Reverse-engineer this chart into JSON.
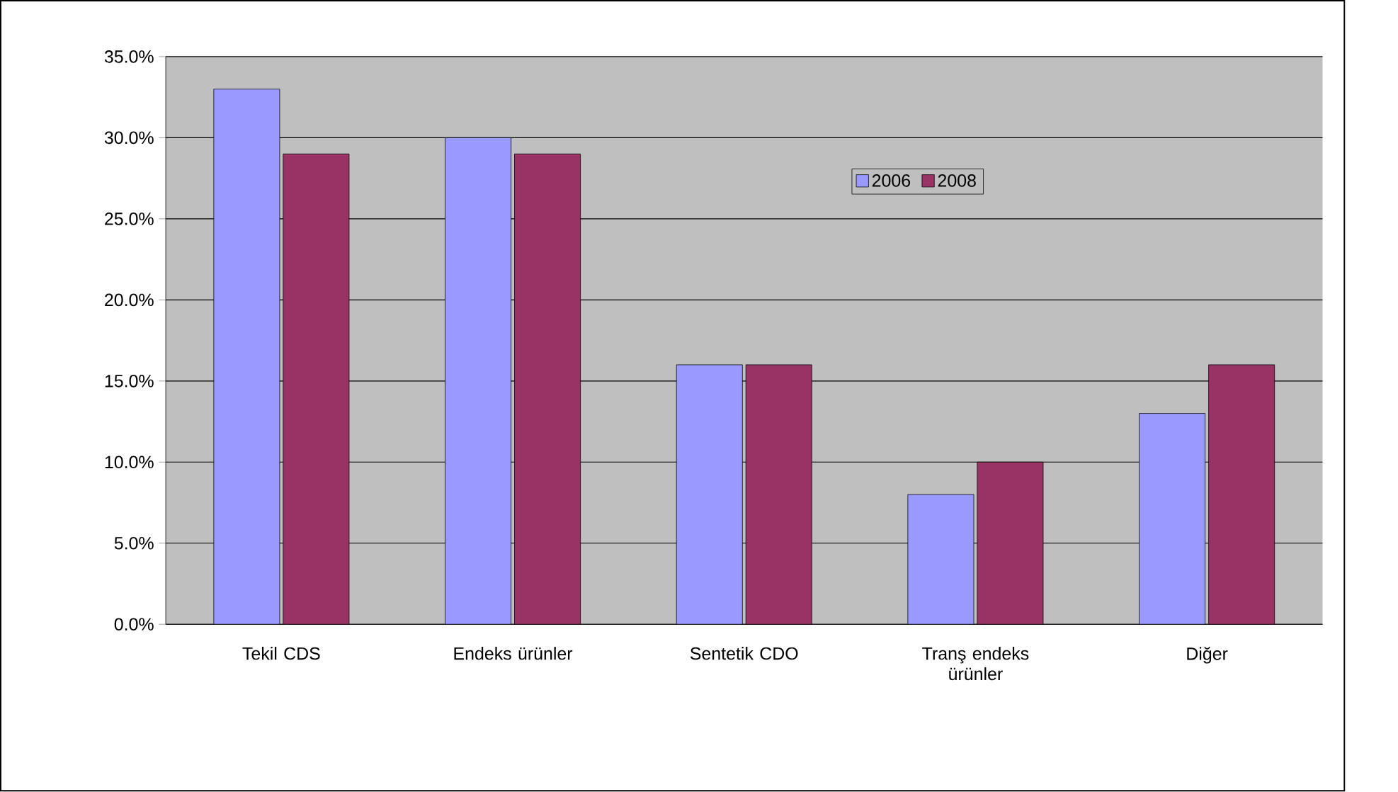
{
  "chart_data": {
    "type": "bar",
    "categories": [
      "Tekil CDS",
      "Endeks ürünler",
      "Sentetik CDO",
      "Tranş endeks ürünler",
      "Diğer"
    ],
    "series": [
      {
        "name": "2006",
        "color": "#9999ff",
        "values": [
          33,
          30,
          16,
          8,
          13
        ]
      },
      {
        "name": "2008",
        "color": "#993366",
        "values": [
          29,
          29,
          16,
          10,
          16
        ]
      }
    ],
    "ylim": [
      0,
      35
    ],
    "yticks": [
      {
        "value": 0,
        "label": "0.0%"
      },
      {
        "value": 5,
        "label": "5.0%"
      },
      {
        "value": 10,
        "label": "10.0%"
      },
      {
        "value": 15,
        "label": "15.0%"
      },
      {
        "value": 20,
        "label": "20.0%"
      },
      {
        "value": 25,
        "label": "25.0%"
      },
      {
        "value": 30,
        "label": "30.0%"
      },
      {
        "value": 35,
        "label": "35.0%"
      }
    ],
    "grid": "y",
    "legend": "top"
  }
}
